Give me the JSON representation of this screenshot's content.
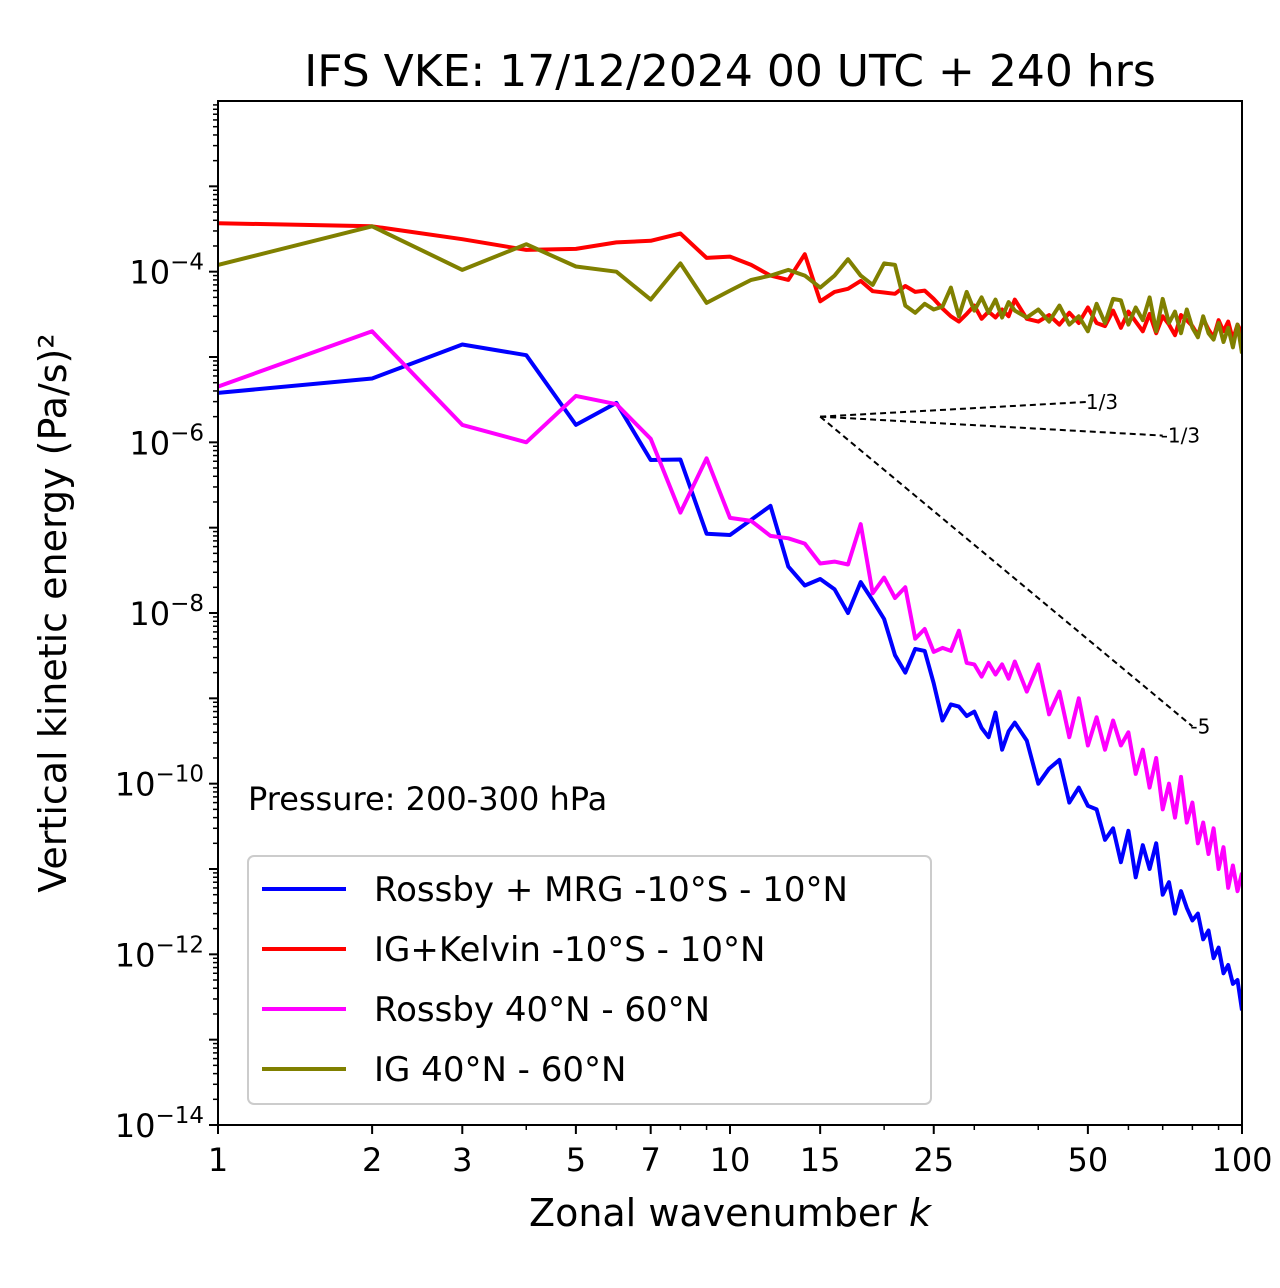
{
  "chart_data": {
    "type": "line",
    "title": "IFS VKE: 17/12/2024 00 UTC + 240 hrs",
    "xlabel": "Zonal wavenumber",
    "xlabel_var": "k",
    "ylabel": "Vertical kinetic energy",
    "ylabel_units": "(Pa/s)²",
    "xscale": "log",
    "yscale": "log",
    "xlim": [
      1,
      100
    ],
    "ylim": [
      1e-14,
      0.01
    ],
    "xticks": [
      1,
      2,
      3,
      5,
      7,
      10,
      15,
      25,
      50,
      100
    ],
    "yticks": [
      {
        "value": 0.0001,
        "base": "10",
        "exp": "−4"
      },
      {
        "value": 1e-06,
        "base": "10",
        "exp": "−6"
      },
      {
        "value": 1e-08,
        "base": "10",
        "exp": "−8"
      },
      {
        "value": 1e-10,
        "base": "10",
        "exp": "−10"
      },
      {
        "value": 1e-12,
        "base": "10",
        "exp": "−12"
      },
      {
        "value": 1e-14,
        "base": "10",
        "exp": "−14"
      }
    ],
    "annotation": "Pressure: 200-300 hPa",
    "legend_position": "lower-left",
    "grid": false,
    "series": [
      {
        "name": "Rossby + MRG -10°S - 10°N",
        "color": "#0000ff",
        "x": [
          1,
          2,
          3,
          4,
          5,
          6,
          7,
          8,
          9,
          10,
          12,
          13,
          14,
          15,
          16,
          17,
          18,
          19,
          20,
          21,
          22,
          23,
          24,
          25,
          26,
          27,
          28,
          29,
          30,
          31,
          32,
          33,
          34,
          35,
          36,
          38,
          40,
          42,
          44,
          46,
          48,
          50,
          52,
          54,
          56,
          58,
          60,
          62,
          64,
          66,
          68,
          70,
          72,
          74,
          76,
          78,
          80,
          82,
          84,
          86,
          88,
          90,
          92,
          94,
          96,
          98,
          100
        ],
        "y": [
          3.8e-06,
          5.6e-06,
          1.4e-05,
          1.05e-05,
          1.6e-06,
          2.9e-06,
          6.2e-07,
          6.3e-07,
          8.5e-08,
          8.2e-08,
          1.8e-07,
          3.5e-08,
          2.1e-08,
          2.5e-08,
          1.9e-08,
          1e-08,
          2.3e-08,
          1.4e-08,
          8.5e-09,
          3.2e-09,
          2e-09,
          3.8e-09,
          3.6e-09,
          1.5e-09,
          5.5e-10,
          8.5e-10,
          8e-10,
          6.2e-10,
          7e-10,
          4.5e-10,
          3.5e-10,
          6.8e-10,
          2.5e-10,
          4.1e-10,
          5.2e-10,
          3.2e-10,
          1e-10,
          1.5e-10,
          1.9e-10,
          6e-11,
          9e-11,
          5.5e-11,
          5e-11,
          2.2e-11,
          3e-11,
          1.2e-11,
          2.8e-11,
          8e-12,
          1.9e-11,
          1e-11,
          2e-11,
          5e-12,
          7e-12,
          3e-12,
          5.5e-12,
          3.5e-12,
          2.5e-12,
          3e-12,
          1.5e-12,
          1.9e-12,
          9e-13,
          1.2e-12,
          6e-13,
          7.5e-13,
          4.5e-13,
          5e-13,
          2.2e-13
        ]
      },
      {
        "name": "IG+Kelvin -10°S - 10°N",
        "color": "#ff0000",
        "x": [
          1,
          2,
          3,
          4,
          5,
          6,
          7,
          8,
          9,
          10,
          11,
          12,
          13,
          14,
          15,
          16,
          17,
          18,
          19,
          20,
          21,
          22,
          23,
          24,
          25,
          26,
          27,
          28,
          29,
          30,
          31,
          32,
          33,
          34,
          35,
          36,
          38,
          40,
          42,
          44,
          46,
          48,
          50,
          52,
          54,
          56,
          58,
          60,
          62,
          64,
          66,
          68,
          70,
          72,
          74,
          76,
          78,
          80,
          82,
          84,
          86,
          88,
          90,
          92,
          94,
          96,
          98,
          100
        ],
        "y": [
          0.00037,
          0.00034,
          0.00024,
          0.00018,
          0.000185,
          0.00022,
          0.00023,
          0.00028,
          0.000145,
          0.00015,
          0.00012,
          9e-05,
          8e-05,
          0.00016,
          4.5e-05,
          5.8e-05,
          6.3e-05,
          7.8e-05,
          5.9e-05,
          5.7e-05,
          5.5e-05,
          6.8e-05,
          5.8e-05,
          6e-05,
          4.8e-05,
          3.7e-05,
          3e-05,
          2.6e-05,
          3.2e-05,
          4e-05,
          2.8e-05,
          3.4e-05,
          2.9e-05,
          3.6e-05,
          3e-05,
          4.7e-05,
          2.8e-05,
          2.6e-05,
          3.1e-05,
          2.4e-05,
          3.3e-05,
          2.5e-05,
          3.8e-05,
          2.5e-05,
          2.3e-05,
          3.5e-05,
          2.2e-05,
          3.4e-05,
          2.6e-05,
          2e-05,
          3.2e-05,
          1.9e-05,
          3e-05,
          2.4e-05,
          1.8e-05,
          3.1e-05,
          2.7e-05,
          2.3e-05,
          1.8e-05,
          2.8e-05,
          2.1e-05,
          1.7e-05,
          2.7e-05,
          2e-05,
          2.6e-05,
          1.6e-05,
          2.4e-05,
          1.9e-05
        ]
      },
      {
        "name": "Rossby 40°N - 60°N",
        "color": "#ff00ff",
        "x": [
          1,
          2,
          3,
          4,
          5,
          6,
          7,
          8,
          9,
          10,
          11,
          12,
          13,
          14,
          15,
          16,
          17,
          18,
          19,
          20,
          21,
          22,
          23,
          24,
          25,
          26,
          27,
          28,
          29,
          30,
          31,
          32,
          33,
          34,
          35,
          36,
          38,
          40,
          42,
          44,
          46,
          48,
          50,
          52,
          54,
          56,
          58,
          60,
          62,
          64,
          66,
          68,
          70,
          72,
          74,
          76,
          78,
          80,
          82,
          84,
          86,
          88,
          90,
          92,
          94,
          96,
          98,
          100
        ],
        "y": [
          4.5e-06,
          2e-05,
          1.6e-06,
          1e-06,
          3.5e-06,
          2.8e-06,
          1.1e-06,
          1.5e-07,
          6.5e-07,
          1.3e-07,
          1.2e-07,
          8e-08,
          7.5e-08,
          6.5e-08,
          3.8e-08,
          4e-08,
          3.7e-08,
          1.1e-07,
          1.7e-08,
          2.6e-08,
          1.5e-08,
          2e-08,
          5e-09,
          6.5e-09,
          3.5e-09,
          3.9e-09,
          3.6e-09,
          6.2e-09,
          2.6e-09,
          2.5e-09,
          1.8e-09,
          2.6e-09,
          1.9e-09,
          2.5e-09,
          1.7e-09,
          2.7e-09,
          1.2e-09,
          2.5e-09,
          6.5e-10,
          1.2e-09,
          3.5e-10,
          1e-09,
          2.8e-10,
          6e-10,
          2.5e-10,
          5.5e-10,
          2.8e-10,
          4e-10,
          1.3e-10,
          2.5e-10,
          9e-11,
          2e-10,
          5e-11,
          1e-10,
          4e-11,
          1.2e-10,
          3.5e-11,
          6e-11,
          2e-11,
          3.5e-11,
          1.5e-11,
          3e-11,
          1e-11,
          1.8e-11,
          6e-12,
          1.1e-11,
          5.5e-12,
          9e-12
        ]
      },
      {
        "name": "IG 40°N - 60°N",
        "color": "#808000",
        "x": [
          1,
          2,
          3,
          4,
          5,
          6,
          7,
          8,
          9,
          10,
          11,
          12,
          13,
          14,
          15,
          16,
          17,
          18,
          19,
          20,
          21,
          22,
          23,
          24,
          25,
          26,
          27,
          28,
          29,
          30,
          31,
          32,
          33,
          34,
          35,
          36,
          38,
          40,
          42,
          44,
          46,
          48,
          50,
          52,
          54,
          56,
          58,
          60,
          62,
          64,
          66,
          68,
          70,
          72,
          74,
          76,
          78,
          80,
          82,
          84,
          86,
          88,
          90,
          92,
          94,
          96,
          98,
          100
        ],
        "y": [
          0.00012,
          0.00034,
          0.000105,
          0.00021,
          0.000115,
          0.0001,
          4.7e-05,
          0.000125,
          4.3e-05,
          6e-05,
          8e-05,
          9e-05,
          0.000105,
          9e-05,
          6.5e-05,
          9e-05,
          0.00014,
          9e-05,
          7e-05,
          0.000125,
          0.00012,
          4e-05,
          3.3e-05,
          4.2e-05,
          3.6e-05,
          3.9e-05,
          6.5e-05,
          3e-05,
          5.8e-05,
          3.5e-05,
          5e-05,
          3.3e-05,
          4.7e-05,
          2.9e-05,
          4.4e-05,
          3.5e-05,
          2.9e-05,
          3.6e-05,
          2.6e-05,
          4e-05,
          2.4e-05,
          3e-05,
          2e-05,
          4.2e-05,
          2.5e-05,
          4.8e-05,
          4.6e-05,
          2.4e-05,
          3.8e-05,
          2.7e-05,
          5e-05,
          2e-05,
          4.8e-05,
          2.5e-05,
          3.4e-05,
          1.9e-05,
          3.6e-05,
          2.2e-05,
          1.7e-05,
          3e-05,
          1.9e-05,
          1.6e-05,
          2.5e-05,
          1.5e-05,
          2.2e-05,
          1.3e-05,
          2.4e-05,
          1.1e-05
        ]
      }
    ],
    "reference_slopes": [
      {
        "label": "1/3",
        "x0": 15,
        "y0": 2e-06,
        "x1": 50,
        "y1": 2.98e-06
      },
      {
        "label": "-1/3",
        "x0": 15,
        "y0": 2e-06,
        "x1": 70,
        "y1": 1.2e-06
      },
      {
        "label": "-5",
        "x0": 15,
        "y0": 2e-06,
        "x1": 80,
        "y1": 4.7e-10
      }
    ]
  }
}
